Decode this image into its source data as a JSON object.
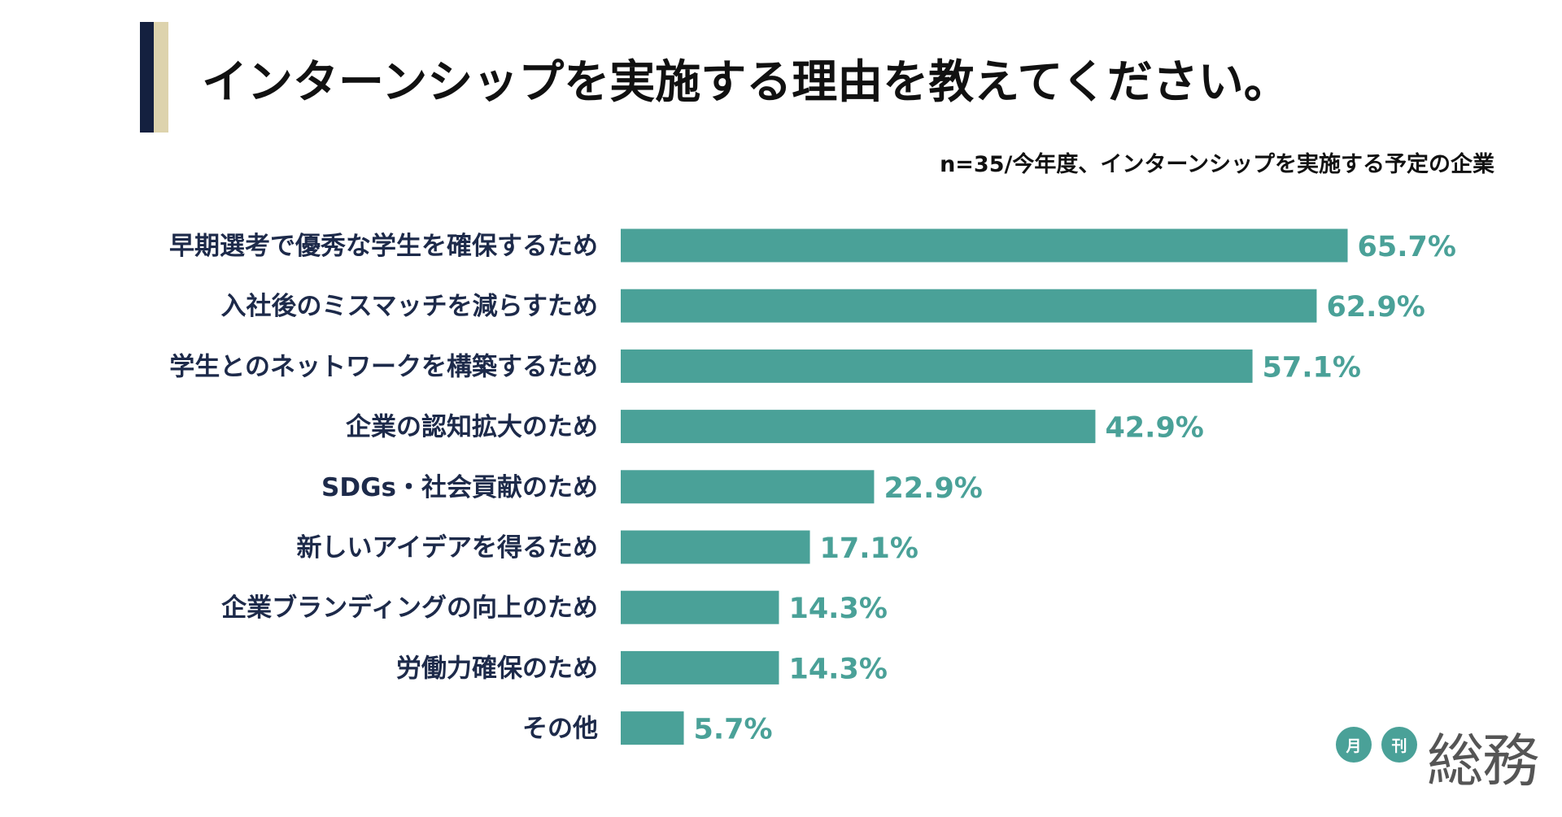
{
  "chart_data": {
    "type": "bar",
    "orientation": "horizontal",
    "title": "インターンシップを実施する理由を教えてください。",
    "subtitle": "n=35/今年度、インターンシップを実施する予定の企業",
    "categories": [
      "早期選考で優秀な学生を確保するため",
      "入社後のミスマッチを減らすため",
      "学生とのネットワークを構築するため",
      "企業の認知拡大のため",
      "SDGs・社会貢献のため",
      "新しいアイデアを得るため",
      "企業ブランディングの向上のため",
      "労働力確保のため",
      "その他"
    ],
    "values": [
      65.7,
      62.9,
      57.1,
      42.9,
      22.9,
      17.1,
      14.3,
      14.3,
      5.7
    ],
    "value_labels": [
      "65.7%",
      "62.9%",
      "57.1%",
      "42.9%",
      "22.9%",
      "17.1%",
      "14.3%",
      "14.3%",
      "5.7%"
    ],
    "xlim": [
      0,
      100
    ],
    "grid": false,
    "legend": "none",
    "xlabel": "",
    "ylabel": ""
  },
  "colors": {
    "bar": "#4aa198",
    "value_text": "#4aa198",
    "accent_navy": "#14203f",
    "accent_beige": "#ddd3ad",
    "logo_circle": "#4aa198"
  },
  "logo": {
    "circle1": "月",
    "circle2": "刊",
    "word": "総務"
  }
}
